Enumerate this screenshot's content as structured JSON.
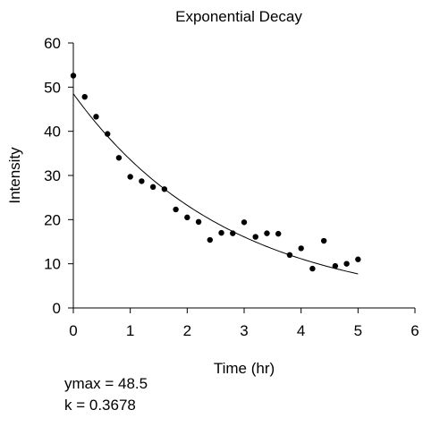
{
  "chart_data": {
    "type": "scatter",
    "title": "Exponential Decay",
    "xlabel": "Time (hr)",
    "ylabel": "Intensity",
    "xlim": [
      0,
      6
    ],
    "ylim": [
      0,
      60
    ],
    "xticks": [
      0,
      1,
      2,
      3,
      4,
      5,
      6
    ],
    "yticks": [
      0,
      10,
      20,
      30,
      40,
      50,
      60
    ],
    "grid": false,
    "series": [
      {
        "kind": "points",
        "x": [
          0,
          0.2,
          0.4,
          0.6,
          0.8,
          1.0,
          1.2,
          1.4,
          1.6,
          1.8,
          2.0,
          2.2,
          2.4,
          2.6,
          2.8,
          3.0,
          3.2,
          3.4,
          3.6,
          3.8,
          4.0,
          4.2,
          4.4,
          4.6,
          4.8,
          5.0
        ],
        "y": [
          52.6,
          47.8,
          43.3,
          39.4,
          34.0,
          29.7,
          28.7,
          27.4,
          26.9,
          22.3,
          20.5,
          19.5,
          15.4,
          17.0,
          16.9,
          19.4,
          16.1,
          16.9,
          16.8,
          12.0,
          13.5,
          8.9,
          15.2,
          9.5,
          10.0,
          11.0
        ],
        "color": "#000000"
      },
      {
        "kind": "fit",
        "equation": "y = ymax * exp(-k * x)",
        "ymax": 48.5,
        "k": 0.3678,
        "x_range": [
          0,
          5
        ],
        "color": "#000000"
      }
    ],
    "annotations": [
      "ymax = 48.5",
      "k = 0.3678"
    ]
  }
}
